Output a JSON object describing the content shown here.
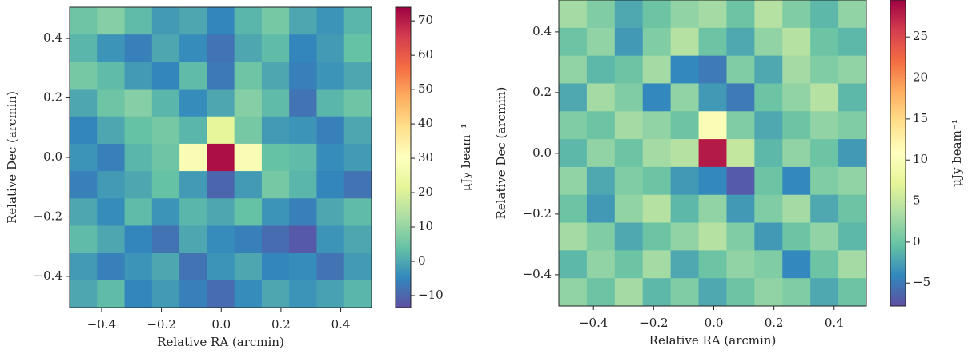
{
  "chart_data": [
    {
      "type": "heatmap",
      "xlabel": "Relative RA (arcmin)",
      "ylabel": "Relative Dec (arcmin)",
      "colorbar_label": "μJy beam⁻¹",
      "xlim": [
        -0.507,
        0.503
      ],
      "ylim": [
        -0.505,
        0.505
      ],
      "xticks": [
        {
          "value": -0.4,
          "label": "−0.4"
        },
        {
          "value": -0.2,
          "label": "−0.2"
        },
        {
          "value": 0,
          "label": "0.0"
        },
        0.2,
        0.4
      ],
      "yticks": [
        {
          "value": -0.4,
          "label": "−0.4"
        },
        {
          "value": -0.2,
          "label": "−0.2"
        },
        {
          "value": 0,
          "label": "0.0"
        },
        0.2,
        0.4
      ],
      "clim": [
        -13.5,
        74
      ],
      "cticks": [
        {
          "value": -10,
          "label": "−10"
        },
        0,
        10,
        20,
        30,
        40,
        50,
        60,
        70
      ],
      "colormap": [
        "#5e4fa2",
        "#3288bd",
        "#66c2a5",
        "#abdda4",
        "#e6f598",
        "#ffffbf",
        "#fee08b",
        "#fdae61",
        "#f46d43",
        "#d53e4f",
        "#9e0142"
      ],
      "z": [
        [
          5,
          8,
          3,
          -2,
          0,
          -5,
          2,
          6,
          0,
          -3,
          2
        ],
        [
          2,
          -3,
          -6,
          0,
          -4,
          -8,
          0,
          3,
          -5,
          -2,
          4
        ],
        [
          6,
          3,
          -2,
          -5,
          3,
          -7,
          5,
          0,
          -6,
          -3,
          0
        ],
        [
          0,
          5,
          8,
          2,
          -4,
          0,
          8,
          3,
          -8,
          2,
          5
        ],
        [
          -5,
          0,
          4,
          6,
          2,
          22,
          6,
          -2,
          -3,
          -6,
          0
        ],
        [
          -3,
          -6,
          2,
          5,
          28,
          72,
          28,
          4,
          3,
          -4,
          -2
        ],
        [
          -6,
          -2,
          0,
          4,
          -2,
          -10,
          -2,
          6,
          2,
          -5,
          -8
        ],
        [
          0,
          -4,
          3,
          -3,
          2,
          0,
          4,
          -3,
          -6,
          0,
          3
        ],
        [
          3,
          0,
          -5,
          -8,
          0,
          -4,
          -6,
          -9,
          -12,
          -3,
          0
        ],
        [
          -2,
          -6,
          -3,
          0,
          -8,
          -3,
          0,
          -5,
          -4,
          -8,
          -2
        ],
        [
          0,
          3,
          -5,
          -2,
          -6,
          -9,
          -4,
          0,
          -3,
          -1,
          2
        ]
      ]
    },
    {
      "type": "heatmap",
      "xlabel": "Relative RA (arcmin)",
      "ylabel": "Relative Dec (arcmin)",
      "colorbar_label": "μJy beam⁻¹",
      "xlim": [
        -0.515,
        0.507
      ],
      "ylim": [
        -0.503,
        0.505
      ],
      "xticks": [
        {
          "value": -0.4,
          "label": "−0.4"
        },
        {
          "value": -0.2,
          "label": "−0.2"
        },
        {
          "value": 0,
          "label": "0.0"
        },
        0.2,
        0.4
      ],
      "yticks": [
        {
          "value": -0.4,
          "label": "−0.4"
        },
        {
          "value": -0.2,
          "label": "−0.2"
        },
        {
          "value": 0,
          "label": "0.0"
        },
        0.2,
        0.4
      ],
      "clim": [
        -7.8,
        29.5
      ],
      "cticks": [
        {
          "value": -5,
          "label": "−5"
        },
        0,
        5,
        10,
        15,
        20,
        25
      ],
      "colormap": [
        "#5e4fa2",
        "#3288bd",
        "#66c2a5",
        "#abdda4",
        "#e6f598",
        "#ffffbf",
        "#fee08b",
        "#fdae61",
        "#f46d43",
        "#d53e4f",
        "#9e0142"
      ],
      "z": [
        [
          3,
          1,
          -2,
          0,
          2,
          3,
          0,
          4,
          1,
          -1,
          2
        ],
        [
          0,
          2,
          -3,
          1,
          4,
          0,
          -2,
          2,
          4,
          0,
          -1
        ],
        [
          2,
          -1,
          0,
          3,
          -4,
          -5,
          1,
          -2,
          3,
          1,
          2
        ],
        [
          -2,
          3,
          1,
          -4,
          2,
          -3,
          -5,
          0,
          2,
          4,
          -1
        ],
        [
          1,
          0,
          3,
          2,
          0,
          10,
          1,
          -2,
          0,
          2,
          1
        ],
        [
          -1,
          2,
          0,
          3,
          4,
          28,
          5,
          -1,
          2,
          0,
          -3
        ],
        [
          2,
          -2,
          1,
          0,
          -3,
          -4,
          -7,
          0,
          -4,
          1,
          2
        ],
        [
          0,
          -3,
          2,
          4,
          -1,
          2,
          -3,
          1,
          3,
          -2,
          0
        ],
        [
          3,
          1,
          -2,
          0,
          2,
          4,
          1,
          -3,
          0,
          2,
          -1
        ],
        [
          -1,
          2,
          0,
          3,
          -2,
          0,
          2,
          1,
          -4,
          0,
          3
        ],
        [
          2,
          0,
          3,
          -1,
          1,
          -2,
          0,
          2,
          1,
          -2,
          0
        ]
      ]
    }
  ]
}
